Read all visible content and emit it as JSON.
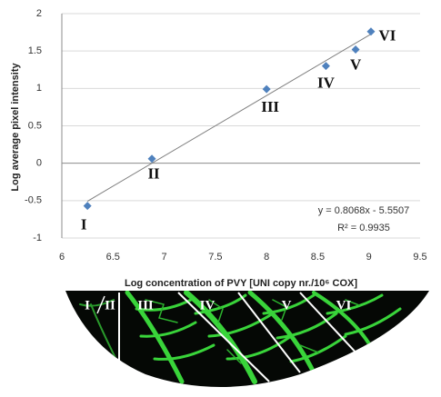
{
  "chart_data": {
    "type": "scatter",
    "x_label": "Log concentration of PVY [UNI copy nr./10⁶ COX]",
    "y_label": "Log average pixel intensity",
    "x": [
      6.25,
      6.88,
      8.0,
      8.58,
      8.87,
      9.02
    ],
    "values": [
      -0.57,
      0.06,
      0.99,
      1.3,
      1.52,
      1.76
    ],
    "labels": [
      "I",
      "II",
      "III",
      "IV",
      "V",
      "VI"
    ],
    "color": "#4f81bd",
    "xlim": [
      6,
      9.5
    ],
    "xticks": [
      6,
      6.5,
      7,
      7.5,
      8,
      8.5,
      9,
      9.5
    ],
    "ylim": [
      -1,
      2
    ],
    "yticks": [
      -1,
      -0.5,
      0,
      0.5,
      1,
      1.5,
      2
    ],
    "grid": true,
    "trendline": {
      "slope": 0.8068,
      "intercept": -5.5507,
      "label": "y = 0.8068x - 5.5507",
      "r_squared_label": "R² = 0.9935"
    }
  },
  "leaf_image": {
    "section_labels": [
      "I",
      "II",
      "III",
      "IV",
      "V",
      "VI"
    ]
  }
}
